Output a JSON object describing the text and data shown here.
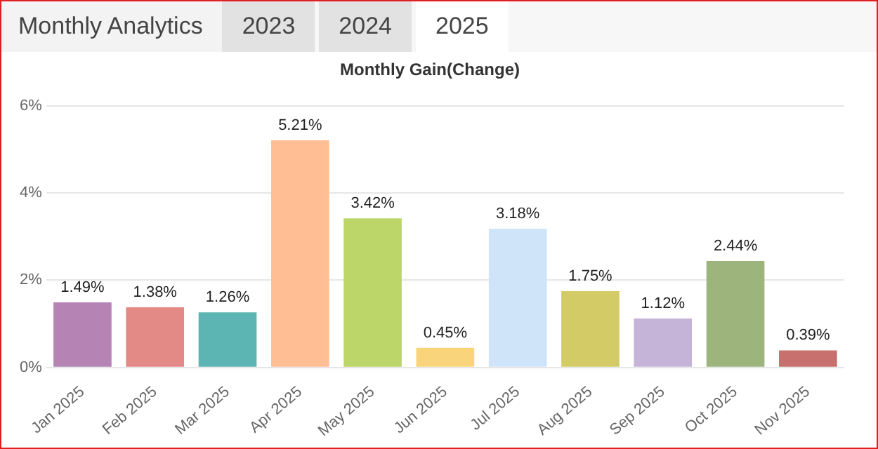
{
  "chart_data": {
    "type": "bar",
    "title": "Monthly Gain(Change)",
    "annotations": [
      "Monthly Analytics",
      "2023",
      "2024",
      "2025"
    ],
    "categories": [
      "Jan 2025",
      "Feb 2025",
      "Mar 2025",
      "Apr 2025",
      "May 2025",
      "Jun 2025",
      "Jul 2025",
      "Aug 2025",
      "Sep 2025",
      "Oct 2025",
      "Nov 2025"
    ],
    "values": [
      1.49,
      1.38,
      1.26,
      5.21,
      3.42,
      0.45,
      3.18,
      1.75,
      1.12,
      2.44,
      0.39
    ],
    "value_labels": [
      "1.49%",
      "1.38%",
      "1.26%",
      "5.21%",
      "3.42%",
      "0.45%",
      "3.18%",
      "1.75%",
      "1.12%",
      "2.44%",
      "0.39%"
    ],
    "colors": [
      "#b584b5",
      "#e48a86",
      "#5db5b3",
      "#ffbe94",
      "#bcd66a",
      "#f9d47a",
      "#cfe4f8",
      "#d3cb66",
      "#c6b4d8",
      "#9db57c",
      "#c8706e"
    ],
    "ylim": [
      0,
      6
    ],
    "yticks": [
      {
        "value": 0,
        "label": "0%"
      },
      {
        "value": 2,
        "label": "2%"
      },
      {
        "value": 4,
        "label": "4%"
      },
      {
        "value": 6,
        "label": "6%"
      }
    ],
    "grid": "y",
    "legend": false
  }
}
